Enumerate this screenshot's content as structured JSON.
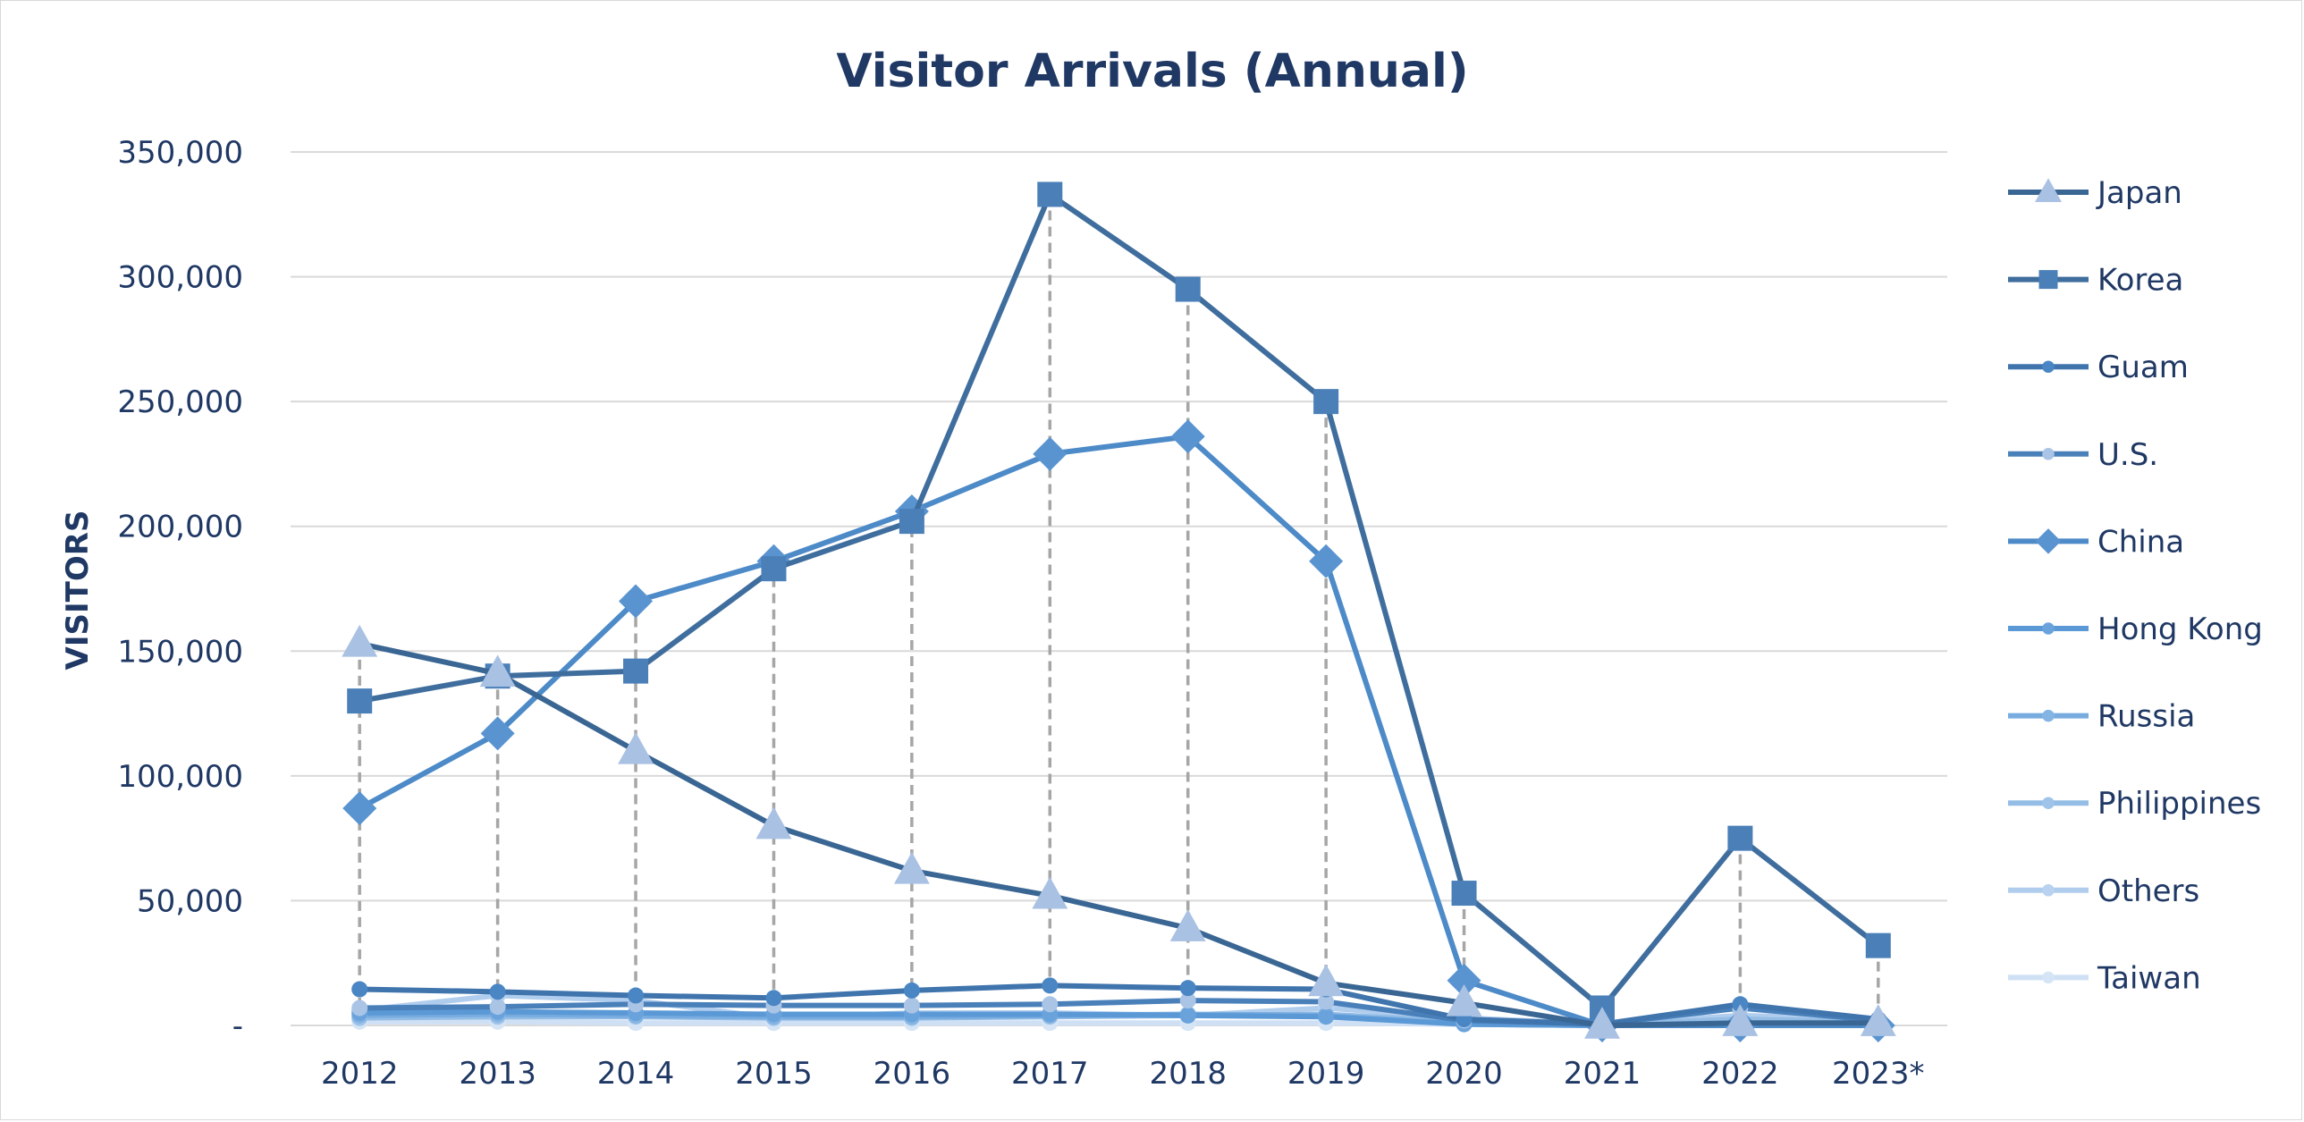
{
  "chart_data": {
    "type": "line",
    "title": "Visitor Arrivals (Annual)",
    "xlabel": "",
    "ylabel": "VISITORS",
    "categories": [
      "2012",
      "2013",
      "2014",
      "2015",
      "2016",
      "2017",
      "2018",
      "2019",
      "2020",
      "2021",
      "2022",
      "2023*"
    ],
    "ylim": [
      0,
      350000
    ],
    "yticks": [
      {
        "value": 0,
        "label": "-"
      },
      {
        "value": 50000,
        "label": "50,000"
      },
      {
        "value": 100000,
        "label": "100,000"
      },
      {
        "value": 150000,
        "label": "150,000"
      },
      {
        "value": 200000,
        "label": "200,000"
      },
      {
        "value": 250000,
        "label": "250,000"
      },
      {
        "value": 300000,
        "label": "300,000"
      },
      {
        "value": 350000,
        "label": "350,000"
      }
    ],
    "grid": true,
    "drop_lines": true,
    "legend_position": "right",
    "series": [
      {
        "name": "Japan",
        "marker": "triangle",
        "line_color": "#3a6694",
        "marker_color": "#a9c1e3",
        "values": [
          153000,
          141000,
          110000,
          80000,
          62000,
          52000,
          39000,
          17000,
          9000,
          0,
          1000,
          1000
        ]
      },
      {
        "name": "Korea",
        "marker": "square",
        "line_color": "#3f6e9e",
        "marker_color": "#4a7fb8",
        "values": [
          130000,
          140000,
          142000,
          183000,
          202000,
          333000,
          295000,
          250000,
          53000,
          7000,
          75000,
          32000
        ]
      },
      {
        "name": "Guam",
        "marker": "circle",
        "line_color": "#3f74ad",
        "marker_color": "#4a86c4",
        "values": [
          14500,
          13500,
          12000,
          11000,
          14000,
          16000,
          15000,
          14500,
          2500,
          500,
          8500,
          2500
        ]
      },
      {
        "name": "U.S.",
        "marker": "circle",
        "line_color": "#4a80ba",
        "marker_color": "#aac4e6",
        "values": [
          7000,
          7500,
          8500,
          8000,
          8000,
          8500,
          10000,
          9500,
          2000,
          500,
          7000,
          2000
        ]
      },
      {
        "name": "China",
        "marker": "diamond",
        "line_color": "#4d8ac8",
        "marker_color": "#5994d1",
        "values": [
          87000,
          117000,
          170000,
          186000,
          206000,
          229000,
          236000,
          186000,
          18000,
          0,
          0,
          0
        ]
      },
      {
        "name": "Hong Kong",
        "marker": "circle",
        "line_color": "#5b99d6",
        "marker_color": "#6aa3dc",
        "values": [
          5000,
          5500,
          5000,
          4500,
          4500,
          4500,
          4000,
          3500,
          500,
          0,
          500,
          500
        ]
      },
      {
        "name": "Russia",
        "marker": "circle",
        "line_color": "#78acdf",
        "marker_color": "#84b4e3",
        "values": [
          4000,
          4500,
          4000,
          3500,
          3500,
          4000,
          4500,
          4000,
          500,
          0,
          0,
          0
        ]
      },
      {
        "name": "Philippines",
        "marker": "circle",
        "line_color": "#94bde6",
        "marker_color": "#9fc4e9",
        "values": [
          3000,
          3500,
          3500,
          3000,
          3000,
          3500,
          4000,
          4500,
          1500,
          500,
          2500,
          1500
        ]
      },
      {
        "name": "Others",
        "marker": "circle",
        "line_color": "#b0cdee",
        "marker_color": "#b8d2ef",
        "values": [
          6000,
          12000,
          10000,
          3000,
          5000,
          5000,
          4000,
          7000,
          3000,
          500,
          4000,
          2500
        ]
      },
      {
        "name": "Taiwan",
        "marker": "circle",
        "line_color": "#cfe0f5",
        "marker_color": "#d6e5f6",
        "values": [
          1500,
          1500,
          1000,
          1000,
          1000,
          1000,
          1000,
          1000,
          500,
          0,
          0,
          0
        ]
      }
    ]
  }
}
